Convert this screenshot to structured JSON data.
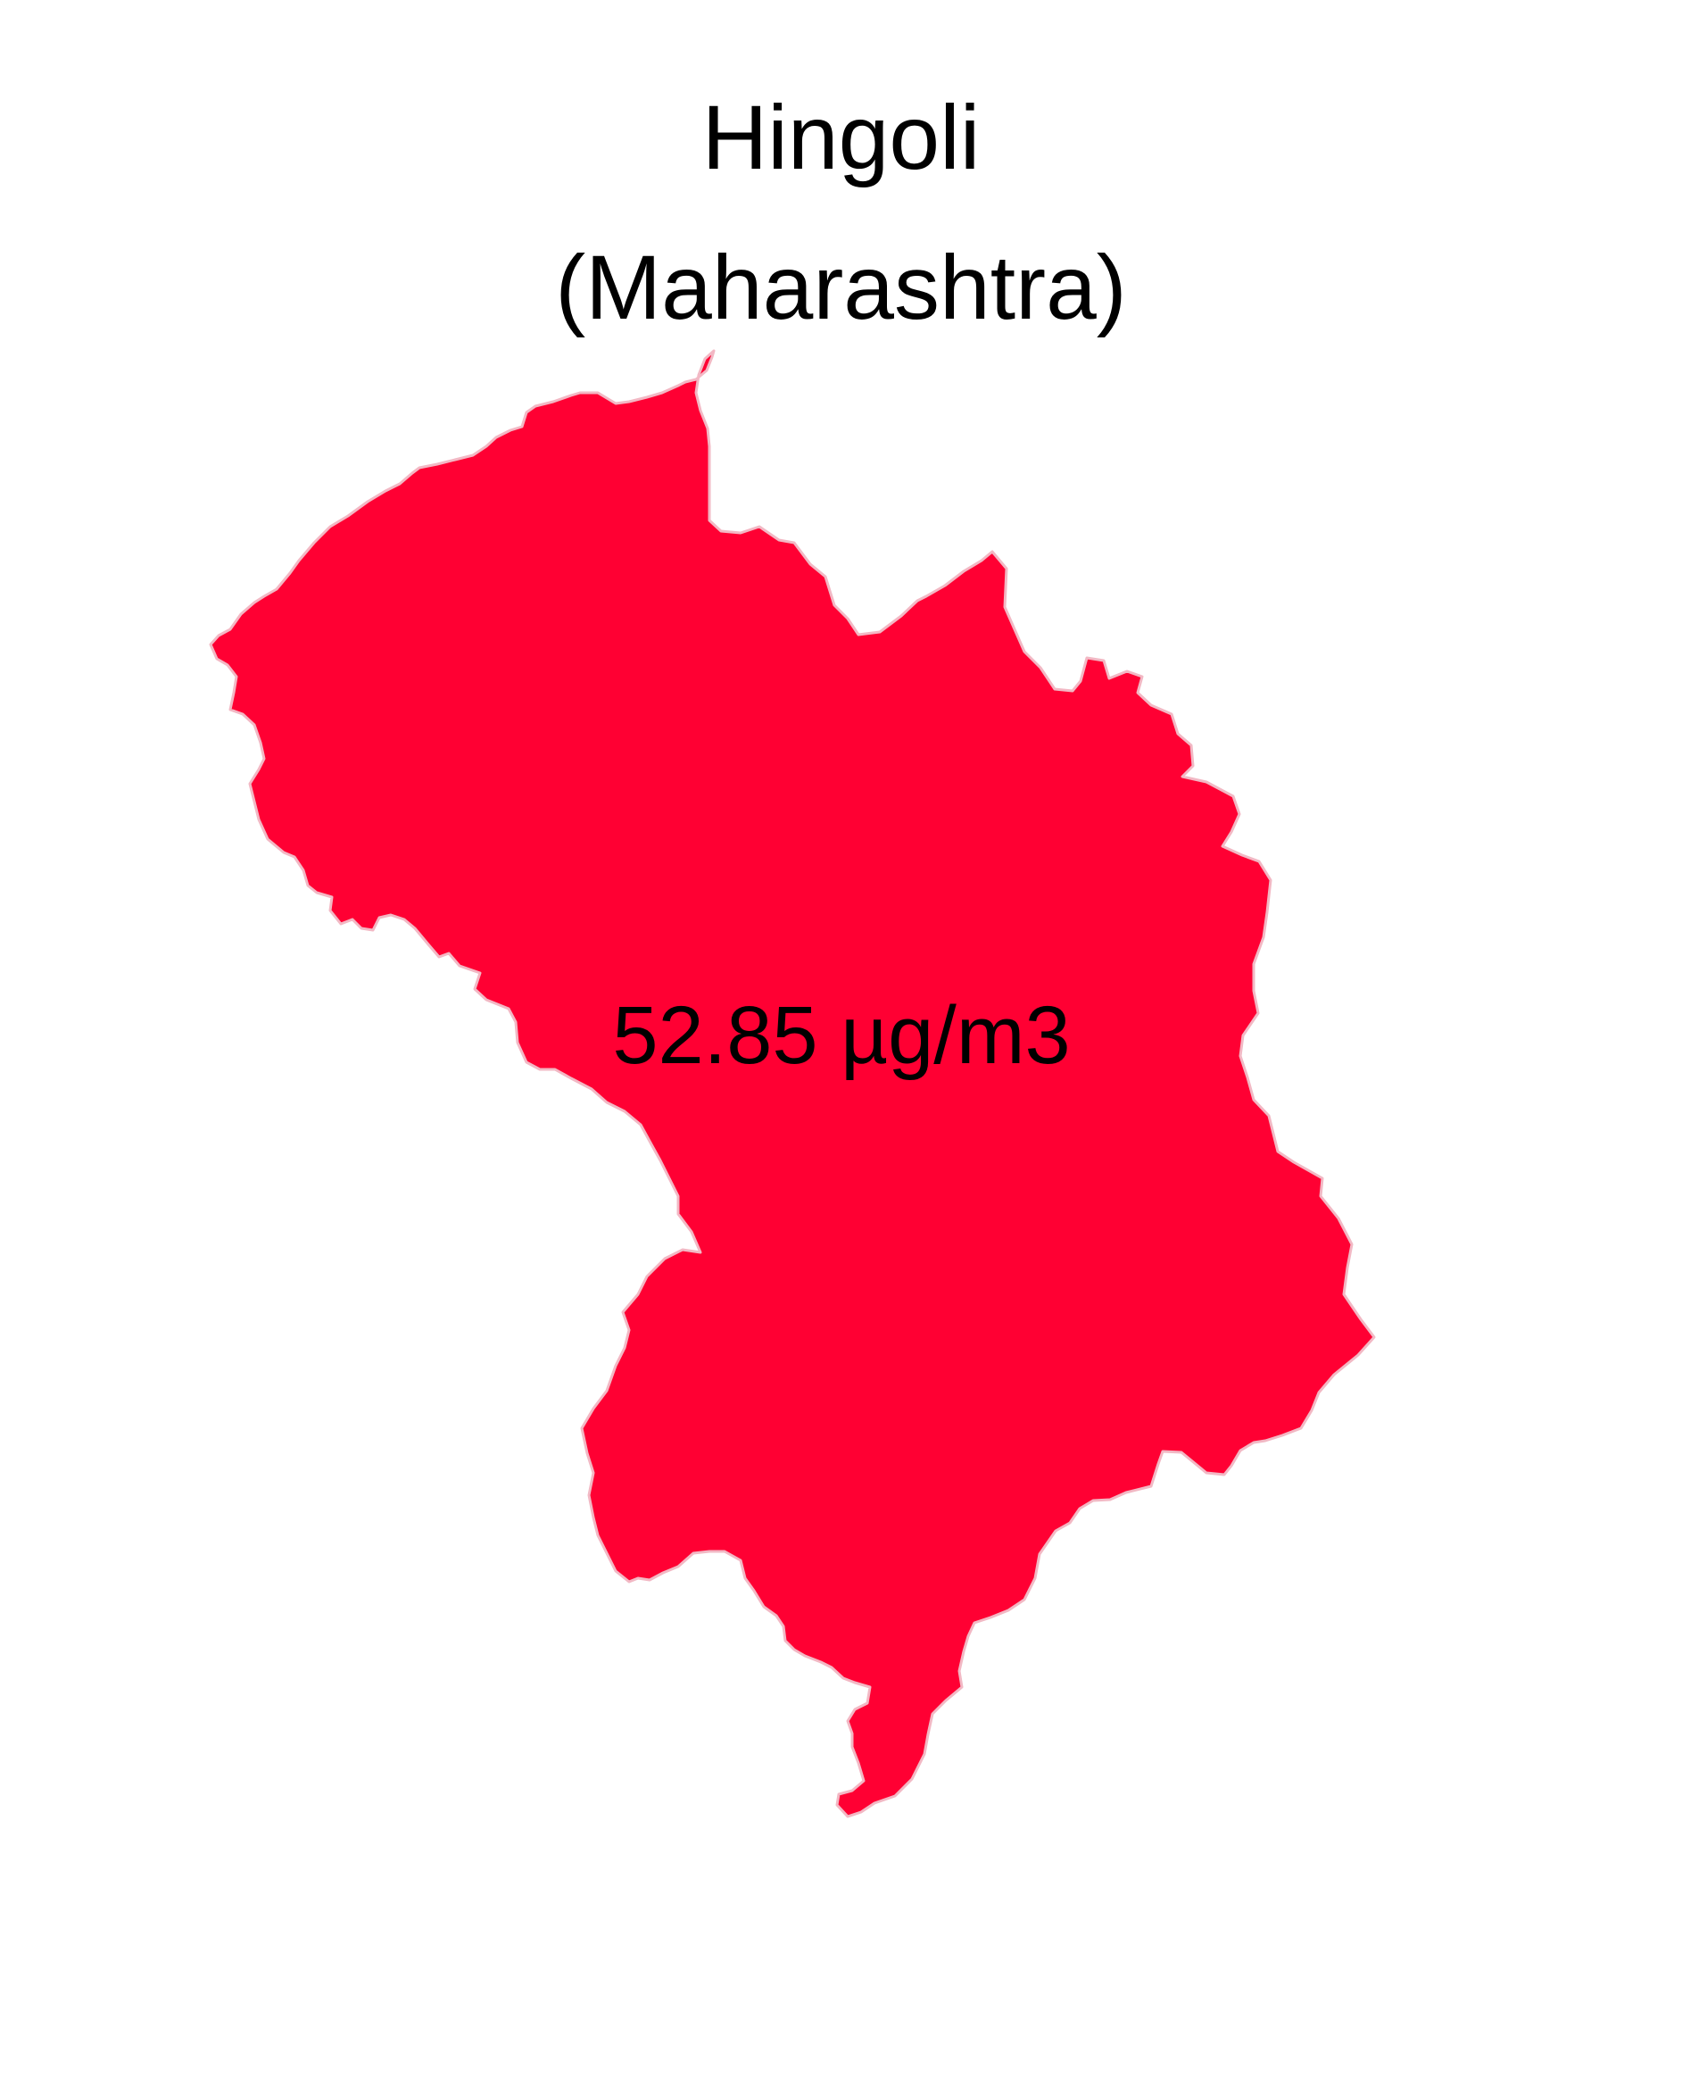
{
  "map": {
    "title_line1": "Hingoli",
    "title_line2": "(Maharashtra)",
    "region": {
      "name": "Hingoli",
      "value": 52.85,
      "unit": "µg/m3",
      "label": "52.85 µg/m3",
      "fill_color": "#FF0033",
      "border_color": "#F2B8C4"
    },
    "background_color": "#FFFFFF"
  }
}
